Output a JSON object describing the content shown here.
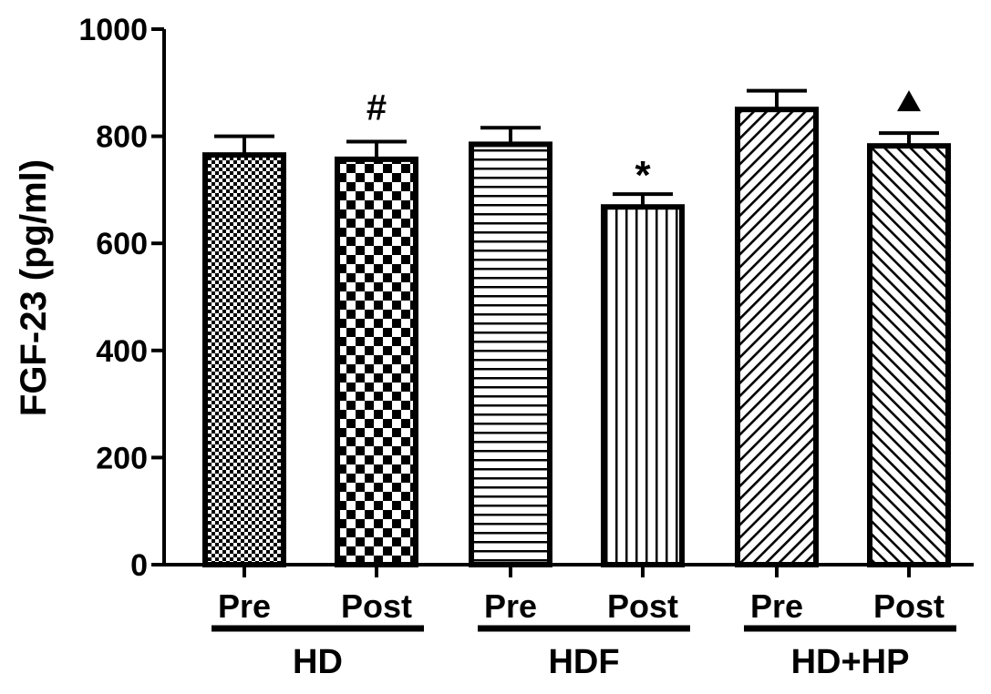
{
  "chart_data": {
    "type": "bar",
    "title": "",
    "ylabel": "FGF-23 (pg/ml)",
    "xlabel": "",
    "ylim": [
      0,
      1000
    ],
    "yticks": [
      "0",
      "200",
      "400",
      "600",
      "800",
      "1000"
    ],
    "categories": [
      "Pre",
      "Post",
      "Pre",
      "Post",
      "Pre",
      "Post"
    ],
    "groups": [
      {
        "label": "HD",
        "members": [
          "Pre",
          "Post"
        ]
      },
      {
        "label": "HDF",
        "members": [
          "Pre",
          "Post"
        ]
      },
      {
        "label": "HD+HP",
        "members": [
          "Pre",
          "Post"
        ]
      }
    ],
    "values": [
      765,
      757,
      785,
      668,
      850,
      782
    ],
    "error_upper": [
      800,
      790,
      816,
      692,
      885,
      806
    ],
    "annotations": [
      "",
      "#",
      "",
      "*",
      "",
      "▲"
    ],
    "patterns": [
      "fine-check",
      "checkerboard",
      "horizontal-lines",
      "vertical-lines",
      "diagonal-lines",
      "reverse-diagonal-lines"
    ],
    "grid": false,
    "legend": "none"
  },
  "colors": {
    "ink": "#000000",
    "background": "#ffffff"
  }
}
